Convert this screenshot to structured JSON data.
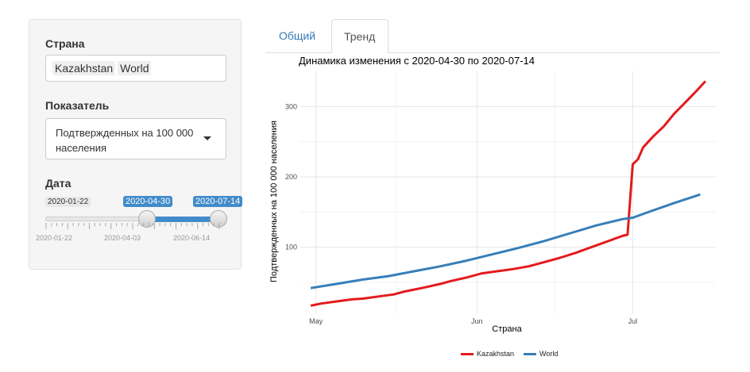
{
  "sidebar": {
    "country_label": "Страна",
    "countries": [
      "Kazakhstan",
      "World"
    ],
    "indicator_label": "Показатель",
    "indicator_value": "Подтвержденных на 100 000 населения",
    "date_label": "Дата",
    "slider": {
      "min_label": "2020-01-22",
      "from_label": "2020-04-30",
      "to_label": "2020-07-14",
      "grid_labels": [
        "2020-01-22",
        "2020-04-03",
        "2020-06-14"
      ],
      "accent_color": "#428bca"
    }
  },
  "tabs": [
    {
      "label": "Общий",
      "active": false
    },
    {
      "label": "Тренд",
      "active": true
    }
  ],
  "chart_data": {
    "type": "line",
    "title": "Динамика изменения с  2020-04-30  по  2020-07-14",
    "xlabel": "Страна",
    "ylabel": "Подтвержденных на 100 000 населения",
    "x_ticks": [
      {
        "label": "May",
        "day": 1
      },
      {
        "label": "Jun",
        "day": 32
      },
      {
        "label": "Jul",
        "day": 62
      }
    ],
    "y_ticks": [
      100,
      200,
      300
    ],
    "xlim": [
      -2,
      78
    ],
    "ylim": [
      5,
      350
    ],
    "legend_position": "bottom",
    "series": [
      {
        "name": "Kazakhstan",
        "color": "#e41a1c",
        "x": [
          0,
          2,
          5,
          8,
          10,
          13,
          16,
          18,
          20,
          22,
          25,
          27,
          30,
          33,
          36,
          39,
          42,
          45,
          48,
          51,
          54,
          57,
          60,
          61,
          62,
          63,
          64,
          65,
          66,
          68,
          70,
          72,
          74,
          76
        ],
        "y": [
          17,
          20,
          23,
          26,
          27,
          30,
          33,
          37,
          40,
          43,
          48,
          52,
          57,
          63,
          66,
          69,
          73,
          79,
          85,
          92,
          100,
          108,
          116,
          118,
          218,
          225,
          242,
          250,
          258,
          272,
          290,
          305,
          320,
          336
        ]
      },
      {
        "name": "World",
        "color": "#377eb8",
        "x": [
          0,
          5,
          10,
          15,
          20,
          25,
          30,
          35,
          40,
          45,
          50,
          55,
          60,
          62,
          65,
          70,
          75
        ],
        "y": [
          42,
          48,
          54,
          59,
          66,
          73,
          81,
          90,
          99,
          109,
          120,
          131,
          140,
          142,
          150,
          163,
          175
        ]
      }
    ]
  }
}
